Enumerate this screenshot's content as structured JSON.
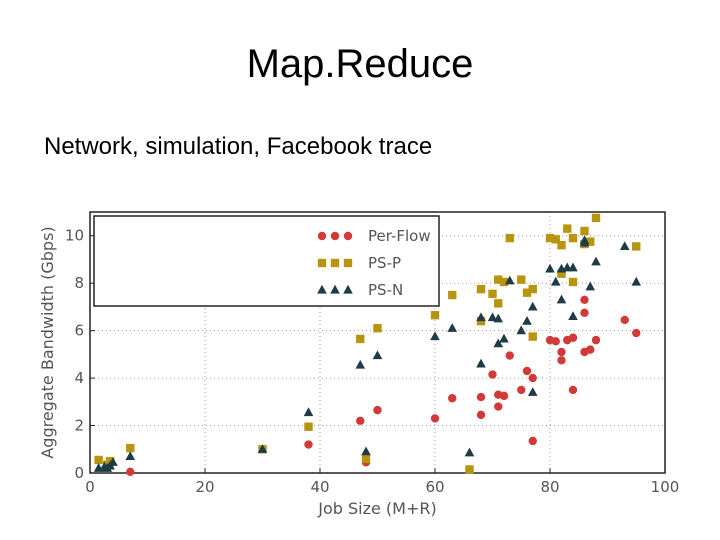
{
  "slide": {
    "title": "Map.Reduce",
    "subtitle": "Network, simulation, Facebook trace"
  },
  "chart_data": {
    "type": "scatter",
    "xlabel": "Job Size (M+R)",
    "ylabel": "Aggregate Bandwidth (Gbps)",
    "xlim": [
      0,
      100
    ],
    "ylim": [
      0,
      11
    ],
    "xticks": [
      0,
      20,
      40,
      60,
      80,
      100
    ],
    "yticks": [
      0,
      2,
      4,
      6,
      8,
      10
    ],
    "grid": true,
    "legend_position": "upper-left",
    "series": [
      {
        "name": "Per-Flow",
        "marker": "circle",
        "color": "#d23a3a",
        "points": [
          [
            7,
            0.05
          ],
          [
            38,
            1.2
          ],
          [
            47,
            2.2
          ],
          [
            48,
            0.45
          ],
          [
            50,
            2.65
          ],
          [
            60,
            2.3
          ],
          [
            63,
            3.15
          ],
          [
            68,
            2.45
          ],
          [
            68,
            3.2
          ],
          [
            70,
            4.15
          ],
          [
            71,
            3.3
          ],
          [
            71,
            2.8
          ],
          [
            72,
            3.25
          ],
          [
            73,
            4.95
          ],
          [
            75,
            3.5
          ],
          [
            76,
            4.3
          ],
          [
            77,
            4.0
          ],
          [
            77,
            1.35
          ],
          [
            80,
            5.6
          ],
          [
            81,
            5.55
          ],
          [
            82,
            5.1
          ],
          [
            82,
            4.75
          ],
          [
            83,
            5.6
          ],
          [
            84,
            5.7
          ],
          [
            84,
            3.5
          ],
          [
            86,
            7.3
          ],
          [
            86,
            6.75
          ],
          [
            86,
            5.1
          ],
          [
            87,
            5.2
          ],
          [
            88,
            5.6
          ],
          [
            93,
            6.45
          ],
          [
            95,
            5.9
          ]
        ]
      },
      {
        "name": "PS-P",
        "marker": "square",
        "color": "#b8950f",
        "points": [
          [
            1.5,
            0.55
          ],
          [
            3,
            0.35
          ],
          [
            3.5,
            0.5
          ],
          [
            7,
            1.05
          ],
          [
            30,
            1.0
          ],
          [
            38,
            1.95
          ],
          [
            47,
            5.65
          ],
          [
            48,
            0.6
          ],
          [
            50,
            6.1
          ],
          [
            60,
            6.65
          ],
          [
            63,
            7.5
          ],
          [
            66,
            0.15
          ],
          [
            68,
            7.75
          ],
          [
            68,
            6.4
          ],
          [
            70,
            7.55
          ],
          [
            71,
            7.15
          ],
          [
            71,
            8.15
          ],
          [
            72,
            8.05
          ],
          [
            73,
            9.9
          ],
          [
            75,
            8.15
          ],
          [
            76,
            7.6
          ],
          [
            77,
            7.75
          ],
          [
            77,
            5.75
          ],
          [
            80,
            9.9
          ],
          [
            81,
            9.85
          ],
          [
            82,
            8.4
          ],
          [
            82,
            9.6
          ],
          [
            83,
            10.3
          ],
          [
            84,
            9.9
          ],
          [
            84,
            8.05
          ],
          [
            86,
            10.2
          ],
          [
            86,
            9.65
          ],
          [
            87,
            9.75
          ],
          [
            88,
            10.75
          ],
          [
            95,
            9.55
          ]
        ]
      },
      {
        "name": "PS-N",
        "marker": "triangle",
        "color": "#1e3c46",
        "points": [
          [
            1.5,
            0.2
          ],
          [
            2.5,
            0.25
          ],
          [
            3,
            0.2
          ],
          [
            3.5,
            0.3
          ],
          [
            4,
            0.45
          ],
          [
            7,
            0.7
          ],
          [
            30,
            1.0
          ],
          [
            38,
            2.55
          ],
          [
            47,
            4.55
          ],
          [
            48,
            0.9
          ],
          [
            50,
            4.95
          ],
          [
            60,
            5.75
          ],
          [
            63,
            6.1
          ],
          [
            66,
            0.85
          ],
          [
            68,
            6.55
          ],
          [
            68,
            4.6
          ],
          [
            70,
            6.55
          ],
          [
            71,
            6.5
          ],
          [
            71,
            5.45
          ],
          [
            72,
            5.65
          ],
          [
            73,
            8.1
          ],
          [
            75,
            6.0
          ],
          [
            76,
            6.4
          ],
          [
            77,
            7.0
          ],
          [
            77,
            3.4
          ],
          [
            80,
            8.6
          ],
          [
            81,
            8.05
          ],
          [
            82,
            8.6
          ],
          [
            82,
            7.3
          ],
          [
            83,
            8.65
          ],
          [
            84,
            8.65
          ],
          [
            84,
            6.6
          ],
          [
            86,
            9.8
          ],
          [
            86,
            9.7
          ],
          [
            87,
            7.85
          ],
          [
            88,
            8.9
          ],
          [
            93,
            9.55
          ],
          [
            95,
            8.05
          ]
        ]
      }
    ]
  }
}
